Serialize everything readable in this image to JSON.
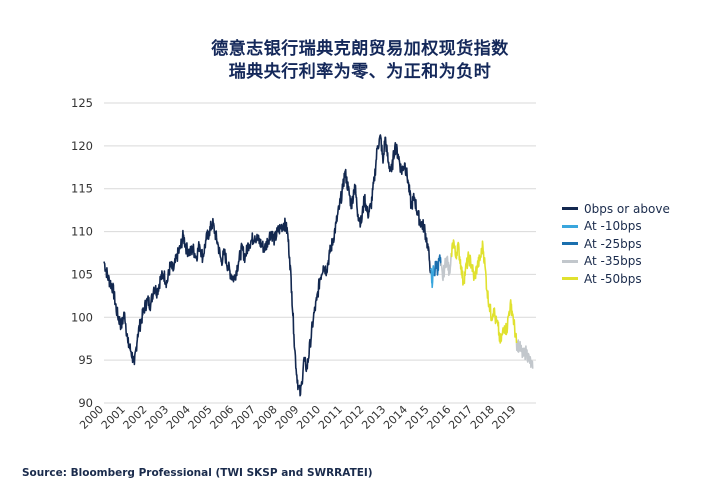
{
  "chart_data": {
    "type": "line",
    "title": "德意志银行瑞典克朗贸易加权现货指数",
    "subtitle": "瑞典央行利率为零、为正和为负时",
    "ylim": [
      90,
      125
    ],
    "yticks": [
      90,
      95,
      100,
      105,
      110,
      115,
      120,
      125
    ],
    "xlim": [
      2000,
      2019.9
    ],
    "xticks": [
      "2000",
      "2001",
      "2002",
      "2003",
      "2004",
      "2005",
      "2006",
      "2007",
      "2008",
      "2009",
      "2010",
      "2011",
      "2012",
      "2013",
      "2014",
      "2015",
      "2016",
      "2017",
      "2018",
      "2019"
    ],
    "grid": "horizontal",
    "legend_position": "right",
    "series": [
      {
        "name": "0bps or above",
        "color": "#13284f",
        "points": [
          [
            2000.0,
            106.5
          ],
          [
            2000.2,
            104.5
          ],
          [
            2000.4,
            103.5
          ],
          [
            2000.6,
            100.5
          ],
          [
            2000.8,
            99
          ],
          [
            2000.95,
            100.5
          ],
          [
            2001.1,
            97
          ],
          [
            2001.25,
            96
          ],
          [
            2001.4,
            94.5
          ],
          [
            2001.55,
            98
          ],
          [
            2001.7,
            99.5
          ],
          [
            2001.85,
            101
          ],
          [
            2002.0,
            102
          ],
          [
            2002.15,
            101.5
          ],
          [
            2002.3,
            103.5
          ],
          [
            2002.45,
            103
          ],
          [
            2002.6,
            104.5
          ],
          [
            2002.75,
            105
          ],
          [
            2002.9,
            104
          ],
          [
            2003.05,
            106
          ],
          [
            2003.2,
            105.5
          ],
          [
            2003.35,
            107
          ],
          [
            2003.5,
            108
          ],
          [
            2003.65,
            109.5
          ],
          [
            2003.8,
            108
          ],
          [
            2003.95,
            107.5
          ],
          [
            2004.1,
            108
          ],
          [
            2004.25,
            107
          ],
          [
            2004.4,
            108.5
          ],
          [
            2004.55,
            107
          ],
          [
            2004.7,
            109
          ],
          [
            2004.85,
            110
          ],
          [
            2005.0,
            111
          ],
          [
            2005.1,
            110
          ],
          [
            2005.25,
            108.5
          ],
          [
            2005.4,
            106.5
          ],
          [
            2005.55,
            107.5
          ],
          [
            2005.7,
            106
          ],
          [
            2005.85,
            105
          ],
          [
            2006.0,
            104.5
          ],
          [
            2006.2,
            106.5
          ],
          [
            2006.35,
            108
          ],
          [
            2006.5,
            107
          ],
          [
            2006.65,
            108.5
          ],
          [
            2006.8,
            109
          ],
          [
            2006.95,
            109.5
          ],
          [
            2007.1,
            109
          ],
          [
            2007.25,
            108.5
          ],
          [
            2007.4,
            108
          ],
          [
            2007.55,
            109
          ],
          [
            2007.7,
            110
          ],
          [
            2007.85,
            109
          ],
          [
            2008.0,
            110
          ],
          [
            2008.15,
            110.5
          ],
          [
            2008.3,
            111
          ],
          [
            2008.45,
            110
          ],
          [
            2008.55,
            107
          ],
          [
            2008.65,
            103
          ],
          [
            2008.75,
            98
          ],
          [
            2008.85,
            94
          ],
          [
            2008.95,
            92
          ],
          [
            2009.05,
            91
          ],
          [
            2009.12,
            92.5
          ],
          [
            2009.2,
            95
          ],
          [
            2009.35,
            94
          ],
          [
            2009.5,
            97
          ],
          [
            2009.65,
            100
          ],
          [
            2009.8,
            102
          ],
          [
            2009.95,
            104.5
          ],
          [
            2010.1,
            106
          ],
          [
            2010.25,
            105.5
          ],
          [
            2010.4,
            107.5
          ],
          [
            2010.55,
            109
          ],
          [
            2010.7,
            111
          ],
          [
            2010.85,
            113
          ],
          [
            2011.0,
            115
          ],
          [
            2011.1,
            117
          ],
          [
            2011.25,
            115
          ],
          [
            2011.4,
            113
          ],
          [
            2011.55,
            115.5
          ],
          [
            2011.7,
            112
          ],
          [
            2011.85,
            111
          ],
          [
            2012.0,
            114
          ],
          [
            2012.15,
            112
          ],
          [
            2012.3,
            113
          ],
          [
            2012.45,
            116
          ],
          [
            2012.6,
            120
          ],
          [
            2012.75,
            121
          ],
          [
            2012.85,
            118
          ],
          [
            2012.95,
            121
          ],
          [
            2013.1,
            118
          ],
          [
            2013.25,
            117
          ],
          [
            2013.4,
            120
          ],
          [
            2013.55,
            119
          ],
          [
            2013.7,
            117
          ],
          [
            2013.85,
            118
          ],
          [
            2014.0,
            116
          ],
          [
            2014.15,
            113
          ],
          [
            2014.3,
            114
          ],
          [
            2014.45,
            112
          ],
          [
            2014.6,
            111
          ],
          [
            2014.75,
            110.5
          ],
          [
            2014.9,
            108.5
          ],
          [
            2015.0,
            106.5
          ],
          [
            2015.05,
            105.5
          ]
        ]
      },
      {
        "name": "At -10bps",
        "color": "#3aa6dd",
        "points": [
          [
            2015.05,
            105.5
          ],
          [
            2015.1,
            104
          ],
          [
            2015.12,
            103.5
          ],
          [
            2015.17,
            106
          ],
          [
            2015.22,
            105
          ]
        ]
      },
      {
        "name": "At -25bps",
        "color": "#1b6fae",
        "points": [
          [
            2015.22,
            105
          ],
          [
            2015.3,
            106.5
          ],
          [
            2015.38,
            105.5
          ],
          [
            2015.45,
            107
          ],
          [
            2015.52,
            106
          ]
        ]
      },
      {
        "name": "At -35bps",
        "color": "#c2c7cc",
        "points": [
          [
            2015.52,
            106
          ],
          [
            2015.6,
            104.5
          ],
          [
            2015.7,
            106
          ],
          [
            2015.8,
            107
          ],
          [
            2015.9,
            105
          ],
          [
            2016.0,
            107.5
          ],
          [
            2019.0,
            97
          ],
          [
            2019.15,
            96.5
          ],
          [
            2019.3,
            95.5
          ],
          [
            2019.45,
            96
          ],
          [
            2019.6,
            95
          ],
          [
            2019.75,
            94
          ]
        ]
      },
      {
        "name": "At -50bps",
        "color": "#e0e12f",
        "points": [
          [
            2016.0,
            107.5
          ],
          [
            2016.1,
            109
          ],
          [
            2016.2,
            107
          ],
          [
            2016.3,
            108.5
          ],
          [
            2016.45,
            106
          ],
          [
            2016.55,
            104
          ],
          [
            2016.65,
            105.5
          ],
          [
            2016.8,
            107
          ],
          [
            2016.95,
            106
          ],
          [
            2017.05,
            104.5
          ],
          [
            2017.2,
            106
          ],
          [
            2017.35,
            107
          ],
          [
            2017.45,
            108.5
          ],
          [
            2017.55,
            106
          ],
          [
            2017.65,
            103
          ],
          [
            2017.75,
            101.5
          ],
          [
            2017.85,
            100
          ],
          [
            2017.95,
            101
          ],
          [
            2018.05,
            99.5
          ],
          [
            2018.15,
            99
          ],
          [
            2018.25,
            97
          ],
          [
            2018.35,
            98
          ],
          [
            2018.45,
            99
          ],
          [
            2018.55,
            98.5
          ],
          [
            2018.65,
            100.5
          ],
          [
            2018.75,
            101.5
          ],
          [
            2018.85,
            100
          ],
          [
            2019.0,
            97
          ]
        ]
      }
    ]
  },
  "source": "Source: Bloomberg Professional (TWI SKSP and SWRRATEI)"
}
